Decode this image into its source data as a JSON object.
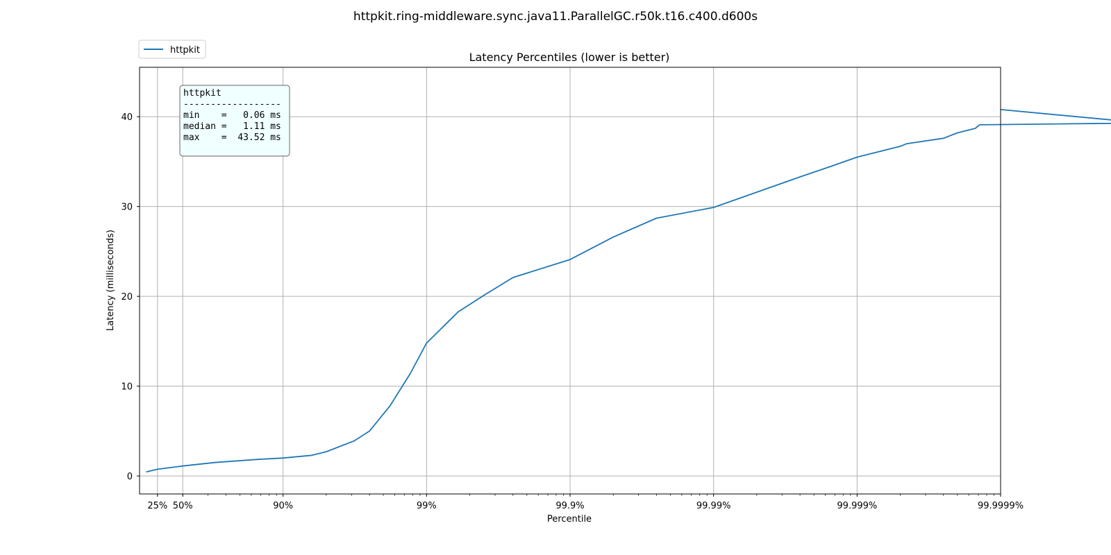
{
  "suptitle": "httpkit.ring-middleware.sync.java11.ParallelGC.r50k.t16.c400.d600s",
  "legend": {
    "label": "httpkit",
    "color": "#1f77b4",
    "placement": "upper-left-outside"
  },
  "stats_box": {
    "lines": [
      "httpkit",
      "------------------",
      "min    =   0.06 ms",
      "median =   1.11 ms",
      "max    =  43.52 ms"
    ],
    "background": "#f0ffff",
    "border": "#808080"
  },
  "chart_data": {
    "type": "line",
    "title": "Latency Percentiles (lower is better)",
    "xlabel": "Percentile",
    "ylabel": "Latency (milliseconds)",
    "x_scale": "log-inverse-percentile",
    "xlim": [
      "0%",
      "99.9999%"
    ],
    "ylim": [
      -2,
      45.5
    ],
    "yticks": [
      0,
      10,
      20,
      30,
      40
    ],
    "ytick_labels": [
      "0",
      "10",
      "20",
      "30",
      "40"
    ],
    "xticks": [
      "25%",
      "50%",
      "90%",
      "99%",
      "99.9%",
      "99.99%",
      "99.999%",
      "99.9999%"
    ],
    "grid": true,
    "series": [
      {
        "name": "httpkit",
        "color": "#1f77b4",
        "points": [
          [
            "10%",
            0.45
          ],
          [
            "25%",
            0.75
          ],
          [
            "50%",
            1.11
          ],
          [
            "70%",
            1.5
          ],
          [
            "85%",
            1.85
          ],
          [
            "90%",
            2.0
          ],
          [
            "93.7%",
            2.3
          ],
          [
            "95%",
            2.7
          ],
          [
            "96.8%",
            3.9
          ],
          [
            "97.5%",
            5.0
          ],
          [
            "98.2%",
            7.8
          ],
          [
            "98.7%",
            11.4
          ],
          [
            "99%",
            14.8
          ],
          [
            "99.4%",
            18.3
          ],
          [
            "99.6%",
            20.1
          ],
          [
            "99.75%",
            22.1
          ],
          [
            "99.9%",
            24.1
          ],
          [
            "99.95%",
            26.6
          ],
          [
            "99.975%",
            28.7
          ],
          [
            "99.99%",
            29.9
          ],
          [
            "99.995%",
            31.6
          ],
          [
            "99.9975%",
            33.3
          ],
          [
            "99.9985%",
            34.5
          ],
          [
            "99.999%",
            35.5
          ],
          [
            "99.9995%",
            36.7
          ],
          [
            "99.99955%",
            37.0
          ],
          [
            "99.99975%",
            37.6
          ],
          [
            "99.9998%",
            38.2
          ],
          [
            "99.99985%",
            38.7
          ],
          [
            "99.99986%",
            39.1
          ],
          [
            "99.99999%",
            39.3
          ],
          [
            "99.9999%",
            40.8
          ]
        ]
      }
    ]
  }
}
